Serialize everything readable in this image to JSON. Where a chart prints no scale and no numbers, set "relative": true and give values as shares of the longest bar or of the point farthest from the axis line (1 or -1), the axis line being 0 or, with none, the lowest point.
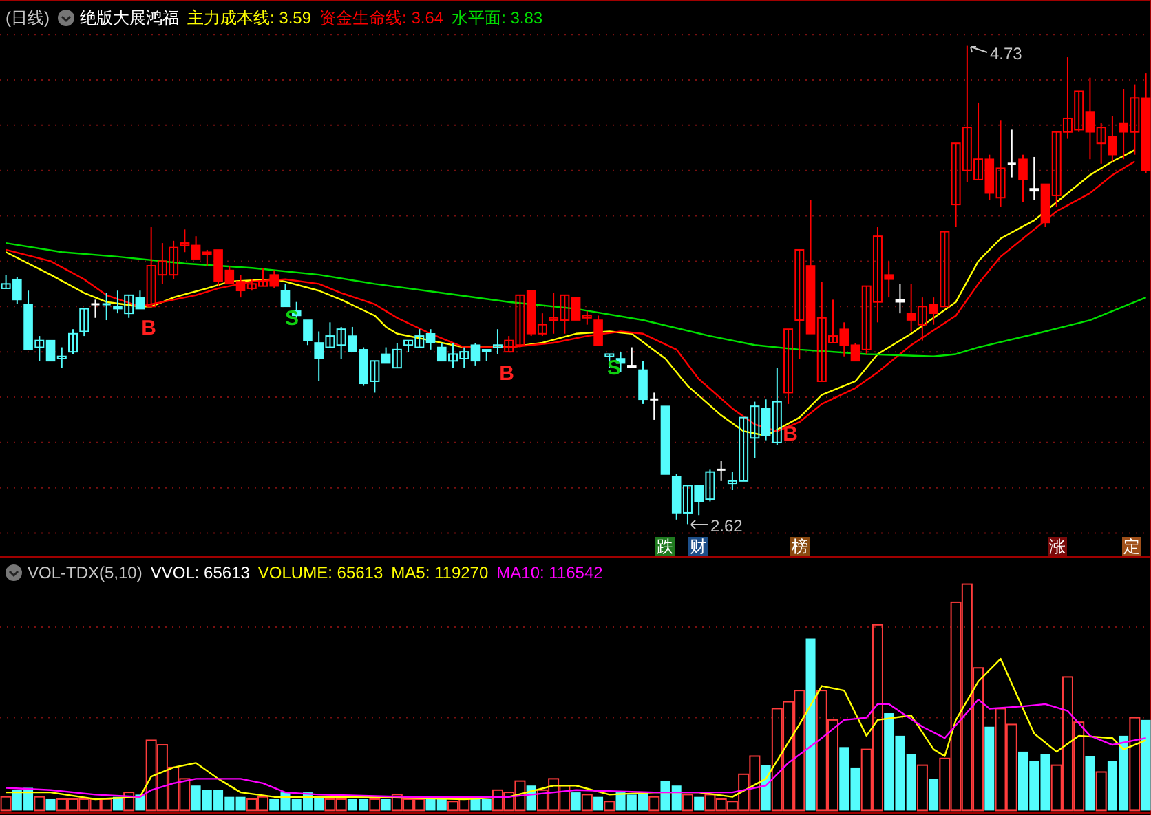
{
  "chart_data": [
    {
      "type": "candlestick",
      "title": "绝版大展鸿福",
      "subtitle": "(日线)",
      "legend": "top left",
      "grid": true,
      "yticks": [
        {
          "value": 4.78,
          "label": null
        },
        {
          "value": 4.58,
          "label": null
        },
        {
          "value": 4.38,
          "label": null
        },
        {
          "value": 4.18,
          "label": null
        },
        {
          "value": 3.98,
          "label": null
        },
        {
          "value": 3.78,
          "label": null
        },
        {
          "value": 3.58,
          "label": null
        },
        {
          "value": 3.38,
          "label": null
        },
        {
          "value": 3.18,
          "label": null
        },
        {
          "value": 2.98,
          "label": null
        },
        {
          "value": 2.78,
          "label": null
        },
        {
          "value": 2.58,
          "label": null
        }
      ],
      "categories": [
        null,
        null,
        null,
        null,
        null,
        null,
        null,
        null,
        null,
        null,
        null,
        null,
        null,
        null,
        null,
        null,
        null,
        null,
        null,
        null,
        null,
        null,
        null,
        null,
        null,
        null,
        null,
        null,
        null,
        null,
        null,
        null,
        null,
        null,
        null,
        null,
        null,
        null,
        null,
        null,
        null,
        null,
        null,
        null,
        null,
        null,
        null,
        null,
        null,
        null,
        null,
        null,
        null,
        null,
        null,
        null,
        null,
        null,
        null,
        null,
        null,
        null,
        null,
        null,
        null,
        null,
        null,
        null,
        null,
        null,
        null,
        null,
        null,
        null,
        null,
        null,
        null,
        null,
        null,
        null,
        null,
        null,
        null,
        null,
        null,
        null,
        null,
        null,
        null,
        null,
        null,
        null,
        null,
        null,
        null,
        null,
        null,
        null,
        null,
        null,
        null,
        null,
        null
      ],
      "ohlc": [
        [
          3.66,
          3.72,
          3.66,
          3.68
        ],
        [
          3.7,
          3.71,
          3.59,
          3.61
        ],
        [
          3.59,
          3.65,
          3.39,
          3.39
        ],
        [
          3.4,
          3.45,
          3.34,
          3.43
        ],
        [
          3.43,
          3.43,
          3.34,
          3.34
        ],
        [
          3.35,
          3.4,
          3.31,
          3.36
        ],
        [
          3.38,
          3.48,
          3.37,
          3.46
        ],
        [
          3.47,
          3.57,
          3.45,
          3.57
        ],
        [
          3.59,
          3.61,
          3.53,
          3.59
        ],
        [
          3.59,
          3.64,
          3.52,
          3.59
        ],
        [
          3.58,
          3.65,
          3.55,
          3.57
        ],
        [
          3.55,
          3.63,
          3.53,
          3.63
        ],
        [
          3.62,
          3.65,
          3.57,
          3.57
        ],
        [
          3.58,
          3.93,
          3.58,
          3.76
        ],
        [
          3.72,
          3.86,
          3.68,
          3.78
        ],
        [
          3.72,
          3.87,
          3.7,
          3.84
        ],
        [
          3.85,
          3.92,
          3.82,
          3.86
        ],
        [
          3.85,
          3.89,
          3.79,
          3.79
        ],
        [
          3.82,
          3.83,
          3.76,
          3.81
        ],
        [
          3.83,
          3.83,
          3.67,
          3.69
        ],
        [
          3.74,
          3.76,
          3.68,
          3.68
        ],
        [
          3.69,
          3.72,
          3.62,
          3.65
        ],
        [
          3.66,
          3.7,
          3.65,
          3.68
        ],
        [
          3.67,
          3.75,
          3.67,
          3.69
        ],
        [
          3.72,
          3.74,
          3.66,
          3.67
        ],
        [
          3.65,
          3.68,
          3.58,
          3.58
        ],
        [
          3.56,
          3.6,
          3.52,
          3.54
        ],
        [
          3.52,
          3.52,
          3.41,
          3.43
        ],
        [
          3.42,
          3.47,
          3.25,
          3.35
        ],
        [
          3.4,
          3.51,
          3.4,
          3.45
        ],
        [
          3.41,
          3.49,
          3.35,
          3.48
        ],
        [
          3.45,
          3.49,
          3.38,
          3.38
        ],
        [
          3.39,
          3.4,
          3.23,
          3.24
        ],
        [
          3.25,
          3.34,
          3.2,
          3.34
        ],
        [
          3.37,
          3.4,
          3.33,
          3.33
        ],
        [
          3.31,
          3.42,
          3.31,
          3.39
        ],
        [
          3.41,
          3.43,
          3.38,
          3.43
        ],
        [
          3.4,
          3.48,
          3.4,
          3.45
        ],
        [
          3.46,
          3.48,
          3.39,
          3.42
        ],
        [
          3.4,
          3.42,
          3.34,
          3.34
        ],
        [
          3.34,
          3.42,
          3.31,
          3.37
        ],
        [
          3.35,
          3.4,
          3.31,
          3.38
        ],
        [
          3.41,
          3.42,
          3.32,
          3.34
        ],
        [
          3.39,
          3.39,
          3.34,
          3.38
        ],
        [
          3.4,
          3.48,
          3.37,
          3.41
        ],
        [
          3.38,
          3.45,
          3.38,
          3.43
        ],
        [
          3.41,
          3.63,
          3.4,
          3.63
        ],
        [
          3.65,
          3.65,
          3.45,
          3.46
        ],
        [
          3.46,
          3.55,
          3.45,
          3.5
        ],
        [
          3.52,
          3.64,
          3.46,
          3.53
        ],
        [
          3.52,
          3.63,
          3.46,
          3.63
        ],
        [
          3.62,
          3.62,
          3.52,
          3.52
        ],
        [
          3.53,
          3.56,
          3.5,
          3.54
        ],
        [
          3.52,
          3.54,
          3.41,
          3.41
        ],
        [
          3.36,
          3.37,
          3.31,
          3.37
        ],
        [
          3.35,
          3.38,
          3.29,
          3.33
        ],
        [
          3.32,
          3.4,
          3.31,
          3.31
        ],
        [
          3.3,
          3.34,
          3.15,
          3.17
        ],
        [
          3.17,
          3.2,
          3.08,
          3.17
        ],
        [
          3.14,
          3.14,
          2.84,
          2.84
        ],
        [
          2.83,
          2.84,
          2.64,
          2.67
        ],
        [
          2.67,
          2.79,
          2.62,
          2.79
        ],
        [
          2.79,
          2.79,
          2.66,
          2.72
        ],
        [
          2.73,
          2.86,
          2.72,
          2.85
        ],
        [
          2.86,
          2.9,
          2.81,
          2.86
        ],
        [
          2.8,
          2.85,
          2.77,
          2.81
        ],
        [
          2.81,
          3.09,
          2.81,
          3.09
        ],
        [
          3.0,
          3.16,
          2.91,
          3.14
        ],
        [
          3.13,
          3.17,
          2.99,
          3.01
        ],
        [
          2.98,
          3.31,
          2.97,
          3.16
        ],
        [
          3.2,
          3.48,
          3.15,
          3.48
        ],
        [
          3.52,
          3.83,
          3.35,
          3.83
        ],
        [
          3.76,
          4.05,
          3.46,
          3.46
        ],
        [
          3.25,
          3.69,
          3.25,
          3.53
        ],
        [
          3.42,
          3.61,
          3.42,
          3.45
        ],
        [
          3.48,
          3.51,
          3.36,
          3.41
        ],
        [
          3.41,
          3.42,
          3.34,
          3.34
        ],
        [
          3.39,
          3.67,
          3.37,
          3.67
        ],
        [
          3.6,
          3.93,
          3.51,
          3.89
        ],
        [
          3.72,
          3.78,
          3.62,
          3.7
        ],
        [
          3.61,
          3.68,
          3.55,
          3.6
        ],
        [
          3.55,
          3.68,
          3.47,
          3.52
        ],
        [
          3.5,
          3.62,
          3.43,
          3.58
        ],
        [
          3.59,
          3.62,
          3.5,
          3.55
        ],
        [
          3.58,
          3.91,
          3.58,
          3.91
        ],
        [
          4.03,
          4.3,
          3.93,
          4.3
        ],
        [
          4.18,
          4.73,
          4.13,
          4.37
        ],
        [
          4.14,
          4.48,
          4.14,
          4.23
        ],
        [
          4.23,
          4.25,
          4.05,
          4.08
        ],
        [
          4.06,
          4.4,
          4.02,
          4.19
        ],
        [
          4.21,
          4.36,
          4.15,
          4.21
        ],
        [
          4.23,
          4.25,
          4.04,
          4.14
        ],
        [
          4.1,
          4.24,
          4.05,
          4.09
        ],
        [
          4.12,
          4.12,
          3.93,
          3.95
        ],
        [
          4.07,
          4.35,
          4.02,
          4.35
        ],
        [
          4.35,
          4.68,
          4.32,
          4.41
        ],
        [
          4.36,
          4.53,
          4.35,
          4.53
        ],
        [
          4.44,
          4.59,
          4.23,
          4.35
        ],
        [
          4.3,
          4.39,
          4.21,
          4.37
        ],
        [
          4.33,
          4.42,
          4.22,
          4.25
        ],
        [
          4.39,
          4.54,
          4.23,
          4.35
        ],
        [
          4.35,
          4.56,
          4.25,
          4.5
        ],
        [
          4.5,
          4.61,
          4.17,
          4.18
        ]
      ],
      "colors": [
        "#54fcfc",
        "#54fcfc",
        "#54fcfc",
        "#54fcfc",
        "#54fcfc",
        "#54fcfc",
        "#54fcfc",
        "#54fcfc",
        "#ffffff",
        "#54fcfc",
        "#54fcfc",
        "#54fcfc",
        "#54fcfc",
        "#ff0000",
        "#ff0000",
        "#ff0000",
        "#ff0000",
        "#ff0000",
        "#ff0000",
        "#ff0000",
        "#ff0000",
        "#ff0000",
        "#ff0000",
        "#ff0000",
        "#ff0000",
        "#54fcfc",
        "#54fcfc",
        "#54fcfc",
        "#54fcfc",
        "#54fcfc",
        "#54fcfc",
        "#54fcfc",
        "#54fcfc",
        "#54fcfc",
        "#54fcfc",
        "#54fcfc",
        "#54fcfc",
        "#54fcfc",
        "#54fcfc",
        "#54fcfc",
        "#54fcfc",
        "#54fcfc",
        "#54fcfc",
        "#54fcfc",
        "#54fcfc",
        "#ff0000",
        "#ff0000",
        "#ff0000",
        "#ff0000",
        "#ff0000",
        "#ff0000",
        "#ff0000",
        "#ff0000",
        "#ff0000",
        "#54fcfc",
        "#54fcfc",
        "#ffffff",
        "#54fcfc",
        "#ffffff",
        "#54fcfc",
        "#54fcfc",
        "#54fcfc",
        "#54fcfc",
        "#54fcfc",
        "#ffffff",
        "#54fcfc",
        "#54fcfc",
        "#54fcfc",
        "#54fcfc",
        "#54fcfc",
        "#ff0000",
        "#ff0000",
        "#ff0000",
        "#ff0000",
        "#ff0000",
        "#ff0000",
        "#ff0000",
        "#ff0000",
        "#ff0000",
        "#ff0000",
        "#ffffff",
        "#ff0000",
        "#ff0000",
        "#ff0000",
        "#ff0000",
        "#ff0000",
        "#ff0000",
        "#ff0000",
        "#ff0000",
        "#ff0000",
        "#ffffff",
        "#ff0000",
        "#ffffff",
        "#ff0000",
        "#ff0000",
        "#ff0000",
        "#ff0000",
        "#ff0000",
        "#ff0000",
        "#ff0000",
        "#ff0000",
        "#ff0000",
        "#ff0000"
      ],
      "series": [
        {
          "type": "line",
          "name": "主力成本线: 3.59",
          "color": "#ffff00",
          "values": [
            3.82,
            null,
            null,
            null,
            3.72,
            null,
            null,
            3.64,
            null,
            3.6,
            null,
            null,
            3.58,
            3.58,
            null,
            3.62,
            null,
            null,
            3.66,
            null,
            3.69,
            null,
            null,
            null,
            3.7,
            3.69,
            null,
            null,
            3.65,
            null,
            3.61,
            null,
            null,
            3.54,
            3.49,
            3.46,
            null,
            null,
            3.43,
            null,
            null,
            3.4,
            null,
            null,
            null,
            3.4,
            null,
            null,
            3.42,
            null,
            null,
            3.46,
            null,
            null,
            3.47,
            null,
            3.46,
            null,
            null,
            3.35,
            null,
            3.23,
            null,
            null,
            3.1,
            null,
            3.03,
            null,
            3.01,
            null,
            null,
            3.09,
            null,
            3.19,
            null,
            null,
            3.25,
            null,
            3.37,
            null,
            null,
            3.46,
            null,
            null,
            null,
            3.6,
            null,
            3.78,
            null,
            3.88,
            null,
            null,
            3.96,
            null,
            4.04,
            null,
            null,
            4.16,
            null,
            4.22,
            null,
            4.27,
            null
          ]
        },
        {
          "type": "line",
          "name": "资金生命线: 3.64",
          "color": "#ff0000",
          "values": [
            3.83,
            null,
            null,
            null,
            3.78,
            null,
            null,
            3.7,
            null,
            3.63,
            null,
            null,
            3.58,
            null,
            3.6,
            null,
            null,
            3.63,
            null,
            3.66,
            null,
            null,
            3.69,
            null,
            null,
            3.7,
            null,
            null,
            3.68,
            null,
            3.64,
            null,
            null,
            3.59,
            3.56,
            3.53,
            null,
            null,
            3.46,
            null,
            null,
            3.4,
            null,
            null,
            null,
            3.4,
            null,
            null,
            null,
            3.42,
            null,
            null,
            3.45,
            null,
            null,
            3.47,
            null,
            3.46,
            null,
            null,
            3.39,
            null,
            3.26,
            null,
            null,
            3.13,
            null,
            3.06,
            null,
            3.03,
            null,
            3.07,
            null,
            3.15,
            null,
            null,
            3.22,
            null,
            3.29,
            null,
            null,
            3.41,
            null,
            null,
            null,
            3.54,
            null,
            3.68,
            null,
            3.8,
            null,
            null,
            3.92,
            null,
            4.0,
            null,
            null,
            4.08,
            null,
            4.16,
            null,
            4.22,
            null
          ]
        },
        {
          "type": "line",
          "name": "水平面: 3.83",
          "color": "#00e000",
          "values": [
            3.86,
            null,
            null,
            null,
            null,
            3.82,
            null,
            null,
            null,
            null,
            3.8,
            null,
            null,
            null,
            null,
            null,
            3.77,
            null,
            null,
            null,
            null,
            null,
            3.75,
            null,
            null,
            null,
            null,
            null,
            3.72,
            null,
            null,
            null,
            null,
            3.68,
            null,
            null,
            null,
            null,
            null,
            3.64,
            null,
            null,
            null,
            null,
            null,
            3.6,
            null,
            null,
            null,
            null,
            null,
            3.57,
            null,
            null,
            null,
            null,
            null,
            3.52,
            null,
            null,
            null,
            null,
            null,
            3.45,
            null,
            null,
            null,
            3.41,
            null,
            null,
            null,
            3.39,
            null,
            null,
            null,
            null,
            null,
            3.37,
            null,
            null,
            null,
            null,
            null,
            3.36,
            null,
            3.37,
            null,
            3.4,
            null,
            null,
            null,
            null,
            null,
            3.47,
            null,
            null,
            null,
            3.52,
            null,
            null,
            null,
            null,
            3.62
          ]
        }
      ],
      "annotations": [
        "4.73",
        "2.62",
        "B",
        "S",
        "B",
        "S",
        "B",
        "跌",
        "财",
        "榜",
        "涨",
        "定"
      ]
    },
    {
      "type": "bar",
      "title": "VOL-TDX(5,10)",
      "relative": true,
      "legend": "top left",
      "ref_lines": [
        {
          "axis": "y",
          "value": 0.41,
          "color": "#7a1010",
          "line_style": "dotted"
        },
        {
          "axis": "y",
          "value": 0.81,
          "color": "#7a1010",
          "line_style": "dotted"
        }
      ],
      "categories": [
        null,
        null,
        null,
        null,
        null,
        null,
        null,
        null,
        null,
        null,
        null,
        null,
        null,
        null,
        null,
        null,
        null,
        null,
        null,
        null,
        null,
        null,
        null,
        null,
        null,
        null,
        null,
        null,
        null,
        null,
        null,
        null,
        null,
        null,
        null,
        null,
        null,
        null,
        null,
        null,
        null,
        null,
        null,
        null,
        null,
        null,
        null,
        null,
        null,
        null,
        null,
        null,
        null,
        null,
        null,
        null,
        null,
        null,
        null,
        null,
        null,
        null,
        null,
        null,
        null,
        null,
        null,
        null,
        null,
        null,
        null,
        null,
        null,
        null,
        null,
        null,
        null,
        null,
        null,
        null,
        null,
        null,
        null,
        null,
        null,
        null,
        null,
        null,
        null,
        null,
        null,
        null,
        null,
        null,
        null,
        null,
        null,
        null,
        null,
        null,
        null,
        null,
        null
      ],
      "annotations": [
        "VVOL: 65613",
        "VOLUME: 65613"
      ],
      "series": [
        {
          "colors": [
            "#ff3c3c",
            "#54fcfc",
            "#54fcfc",
            "#ff3c3c",
            "#54fcfc",
            "#ff3c3c",
            "#ff3c3c",
            "#ff3c3c",
            "#ff3c3c",
            "#ff3c3c",
            "#54fcfc",
            "#ff3c3c",
            "#54fcfc",
            "#ff3c3c",
            "#ff3c3c",
            "#ff3c3c",
            "#ff3c3c",
            "#54fcfc",
            "#54fcfc",
            "#54fcfc",
            "#54fcfc",
            "#54fcfc",
            "#ff3c3c",
            "#ff3c3c",
            "#54fcfc",
            "#54fcfc",
            "#54fcfc",
            "#54fcfc",
            "#54fcfc",
            "#ff3c3c",
            "#ff3c3c",
            "#54fcfc",
            "#54fcfc",
            "#ff3c3c",
            "#54fcfc",
            "#ff3c3c",
            "#ff3c3c",
            "#ff3c3c",
            "#54fcfc",
            "#54fcfc",
            "#ff3c3c",
            "#ff3c3c",
            "#54fcfc",
            "#54fcfc",
            "#ff3c3c",
            "#ff3c3c",
            "#ff3c3c",
            "#54fcfc",
            "#ff3c3c",
            "#ff3c3c",
            "#ff3c3c",
            "#54fcfc",
            "#ff3c3c",
            "#54fcfc",
            "#ff3c3c",
            "#54fcfc",
            "#54fcfc",
            "#54fcfc",
            "#ff3c3c",
            "#54fcfc",
            "#54fcfc",
            "#ff3c3c",
            "#54fcfc",
            "#ff3c3c",
            "#ff3c3c",
            "#ff3c3c",
            "#ff3c3c",
            "#ff3c3c",
            "#54fcfc",
            "#ff3c3c",
            "#ff3c3c",
            "#ff3c3c",
            "#54fcfc",
            "#ff3c3c",
            "#ff3c3c",
            "#54fcfc",
            "#54fcfc",
            "#ff3c3c",
            "#ff3c3c",
            "#54fcfc",
            "#54fcfc",
            "#54fcfc",
            "#ff3c3c",
            "#54fcfc",
            "#ff3c3c",
            "#ff3c3c",
            "#ff3c3c",
            "#ff3c3c",
            "#54fcfc",
            "#ff3c3c",
            "#ff3c3c",
            "#54fcfc",
            "#54fcfc",
            "#54fcfc",
            "#ff3c3c",
            "#ff3c3c",
            "#ff3c3c",
            "#54fcfc",
            "#ff3c3c",
            "#54fcfc",
            "#54fcfc",
            "#ff3c3c",
            "#54fcfc"
          ],
          "values": [
            0.06,
            0.09,
            0.1,
            0.06,
            0.05,
            0.05,
            0.05,
            0.05,
            0.05,
            0.05,
            0.06,
            0.08,
            0.07,
            0.31,
            0.29,
            0.19,
            0.14,
            0.11,
            0.09,
            0.09,
            0.06,
            0.06,
            0.05,
            0.06,
            0.05,
            0.08,
            0.05,
            0.08,
            0.06,
            0.05,
            0.05,
            0.05,
            0.05,
            0.05,
            0.05,
            0.07,
            0.05,
            0.05,
            0.05,
            0.05,
            0.04,
            0.06,
            0.05,
            0.05,
            0.09,
            0.08,
            0.13,
            0.11,
            0.09,
            0.14,
            0.11,
            0.08,
            0.07,
            0.06,
            0.04,
            0.08,
            0.07,
            0.08,
            0.06,
            0.13,
            0.11,
            0.07,
            0.06,
            0.07,
            0.05,
            0.04,
            0.16,
            0.24,
            0.2,
            0.45,
            0.48,
            0.53,
            0.76,
            0.53,
            0.4,
            0.28,
            0.19,
            0.27,
            0.82,
            0.43,
            0.33,
            0.25,
            0.2,
            0.14,
            0.23,
            0.92,
            1,
            0.63,
            0.37,
            0.45,
            0.38,
            0.26,
            0.22,
            0.25,
            0.2,
            0.59,
            0.39,
            0.24,
            0.17,
            0.22,
            0.33,
            0.41,
            0.4
          ]
        },
        {
          "type": "line",
          "name": "MA5: 119270",
          "color": "#ffff00",
          "values": [
            0.08,
            null,
            null,
            null,
            0.08,
            null,
            null,
            null,
            0.05,
            null,
            null,
            null,
            0.06,
            0.15,
            null,
            0.19,
            null,
            0.21,
            null,
            0.14,
            null,
            0.08,
            null,
            null,
            0.06,
            null,
            null,
            null,
            null,
            null,
            null,
            null,
            0.06,
            null,
            null,
            null,
            null,
            null,
            null,
            null,
            null,
            0.05,
            null,
            null,
            null,
            0.06,
            null,
            null,
            null,
            0.11,
            null,
            0.11,
            null,
            null,
            0.07,
            null,
            null,
            null,
            0.08,
            null,
            null,
            null,
            0.08,
            null,
            null,
            0.06,
            null,
            null,
            0.14,
            null,
            null,
            0.38,
            null,
            0.55,
            null,
            0.53,
            null,
            0.33,
            0.4,
            null,
            null,
            0.42,
            null,
            0.27,
            0.24,
            0.4,
            null,
            0.57,
            null,
            0.67,
            null,
            null,
            0.34,
            null,
            0.26,
            null,
            0.33,
            null,
            null,
            0.32,
            0.27,
            null,
            0.31
          ]
        },
        {
          "type": "line",
          "name": "MA10: 116542",
          "color": "#ff00ff",
          "values": [
            0.1,
            null,
            null,
            null,
            0.09,
            null,
            null,
            null,
            0.07,
            null,
            null,
            null,
            0.06,
            0.09,
            null,
            0.12,
            null,
            0.14,
            null,
            null,
            null,
            0.14,
            null,
            0.12,
            null,
            0.08,
            null,
            null,
            0.07,
            null,
            null,
            null,
            null,
            null,
            null,
            null,
            0.06,
            null,
            null,
            null,
            null,
            null,
            null,
            null,
            null,
            0.06,
            null,
            null,
            null,
            0.08,
            null,
            0.09,
            null,
            null,
            null,
            null,
            null,
            null,
            0.08,
            null,
            null,
            null,
            null,
            null,
            null,
            0.08,
            null,
            null,
            0.11,
            null,
            0.21,
            null,
            null,
            0.32,
            null,
            0.4,
            null,
            0.41,
            0.47,
            0.47,
            null,
            null,
            0.37,
            null,
            0.32,
            null,
            null,
            0.49,
            0.45,
            null,
            null,
            0.46,
            null,
            0.47,
            null,
            0.44,
            null,
            0.33,
            null,
            0.29,
            null,
            null,
            0.32
          ]
        }
      ]
    }
  ]
}
